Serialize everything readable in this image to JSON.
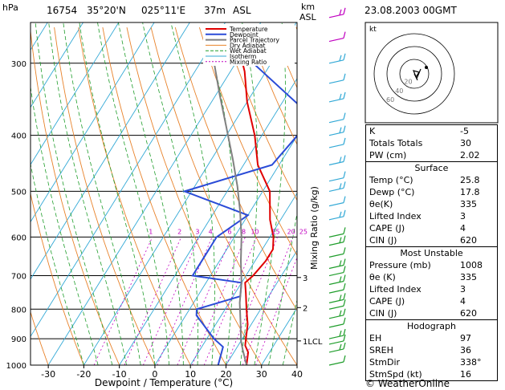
{
  "header": {
    "unit_left": "hPa",
    "station": "16754",
    "lat": "35°20'N",
    "lon": "025°11'E",
    "elev": "37m",
    "asl": "ASL",
    "km_label": "km",
    "km_asl": "ASL",
    "datetime": "23.08.2003  00GMT"
  },
  "chart_data": {
    "type": "line",
    "title": "",
    "xlabel": "Dewpoint / Temperature (°C)",
    "ylabel": "hPa",
    "xlim": [
      -35,
      40
    ],
    "ylim": [
      1000,
      250
    ],
    "log_y": true,
    "pressure_ticks": [
      300,
      400,
      500,
      600,
      700,
      800,
      900,
      1000
    ],
    "temp_ticks": [
      -30,
      -20,
      -10,
      0,
      10,
      20,
      30,
      40
    ],
    "km_ticks": [
      {
        "km": "1LCL",
        "p": 908
      },
      {
        "km": "2",
        "p": 795
      },
      {
        "km": "3",
        "p": 705
      }
    ],
    "mixing_ratio_label": "Mixing Ratio (g/kg)",
    "mixing_ratio_values": [
      "1",
      "2",
      "3",
      "4",
      "6",
      "8",
      "10",
      "15",
      "20",
      "25"
    ],
    "series": [
      {
        "name": "Temperature",
        "color": "#e00000",
        "points": [
          [
            25.8,
            1000
          ],
          [
            24,
            950
          ],
          [
            22,
            925
          ],
          [
            21,
            900
          ],
          [
            19,
            850
          ],
          [
            16,
            800
          ],
          [
            13,
            750
          ],
          [
            11,
            720
          ],
          [
            12,
            700
          ],
          [
            13,
            660
          ],
          [
            13,
            630
          ],
          [
            11,
            600
          ],
          [
            7,
            560
          ],
          [
            2,
            500
          ],
          [
            -6,
            450
          ],
          [
            -12,
            400
          ],
          [
            -20,
            350
          ],
          [
            -26,
            310
          ],
          [
            -28,
            300
          ],
          [
            -35,
            260
          ]
        ]
      },
      {
        "name": "Dewpoint",
        "color": "#2a4bd7",
        "points": [
          [
            17.8,
            1000
          ],
          [
            16,
            930
          ],
          [
            12,
            900
          ],
          [
            3,
            820
          ],
          [
            2,
            800
          ],
          [
            12,
            760
          ],
          [
            10,
            720
          ],
          [
            -5,
            700
          ],
          [
            -5,
            640
          ],
          [
            -5,
            600
          ],
          [
            0,
            550
          ],
          [
            -22,
            500
          ],
          [
            -2,
            450
          ],
          [
            0,
            400
          ],
          [
            -3,
            360
          ],
          [
            -25,
            300
          ],
          [
            -30,
            280
          ],
          [
            -36,
            260
          ]
        ]
      },
      {
        "name": "Parcel Trajectory",
        "color": "#808080",
        "points": [
          [
            25.8,
            1000
          ],
          [
            22,
            940
          ],
          [
            20,
            908
          ],
          [
            17,
            850
          ],
          [
            13,
            780
          ],
          [
            10,
            720
          ],
          [
            6,
            660
          ],
          [
            2,
            600
          ],
          [
            -3,
            540
          ],
          [
            -8,
            490
          ],
          [
            -14,
            440
          ],
          [
            -21,
            390
          ],
          [
            -29,
            340
          ],
          [
            -36,
            300
          ],
          [
            -43,
            265
          ]
        ]
      }
    ],
    "legend": [
      "Temperature",
      "Dewpoint",
      "Parcel Trajectory",
      "Dry Adiabat",
      "Wet Adiabat",
      "Isotherm",
      "Mixing Ratio"
    ],
    "legend_position": "top-right",
    "legend_colors": [
      "#e00000",
      "#2a4bd7",
      "#808080",
      "#e8822a",
      "#1f9d2b",
      "#33a9d6",
      "#c000c0"
    ]
  },
  "hodograph": {
    "label": "kt",
    "ring_labels": [
      "20",
      "40",
      "60"
    ]
  },
  "indices": {
    "K": "-5",
    "Totals Totals": "30",
    "PW (cm)": "2.02"
  },
  "surface": {
    "title": "Surface",
    "rows": [
      [
        "Temp (°C)",
        "25.8"
      ],
      [
        "Dewp (°C)",
        "17.8"
      ],
      [
        "θe(K)",
        "335"
      ],
      [
        "Lifted Index",
        "3"
      ],
      [
        "CAPE (J)",
        "4"
      ],
      [
        "CIN (J)",
        "620"
      ]
    ]
  },
  "most_unstable": {
    "title": "Most Unstable",
    "rows": [
      [
        "Pressure (mb)",
        "1008"
      ],
      [
        "θe (K)",
        "335"
      ],
      [
        "Lifted Index",
        "3"
      ],
      [
        "CAPE (J)",
        "4"
      ],
      [
        "CIN (J)",
        "620"
      ]
    ]
  },
  "hodo_table": {
    "title": "Hodograph",
    "rows": [
      [
        "EH",
        "97"
      ],
      [
        "SREH",
        "36"
      ],
      [
        "StmDir",
        "338°"
      ],
      [
        "StmSpd (kt)",
        "16"
      ]
    ]
  },
  "footer": {
    "copyright": "© WeatherOnline"
  }
}
